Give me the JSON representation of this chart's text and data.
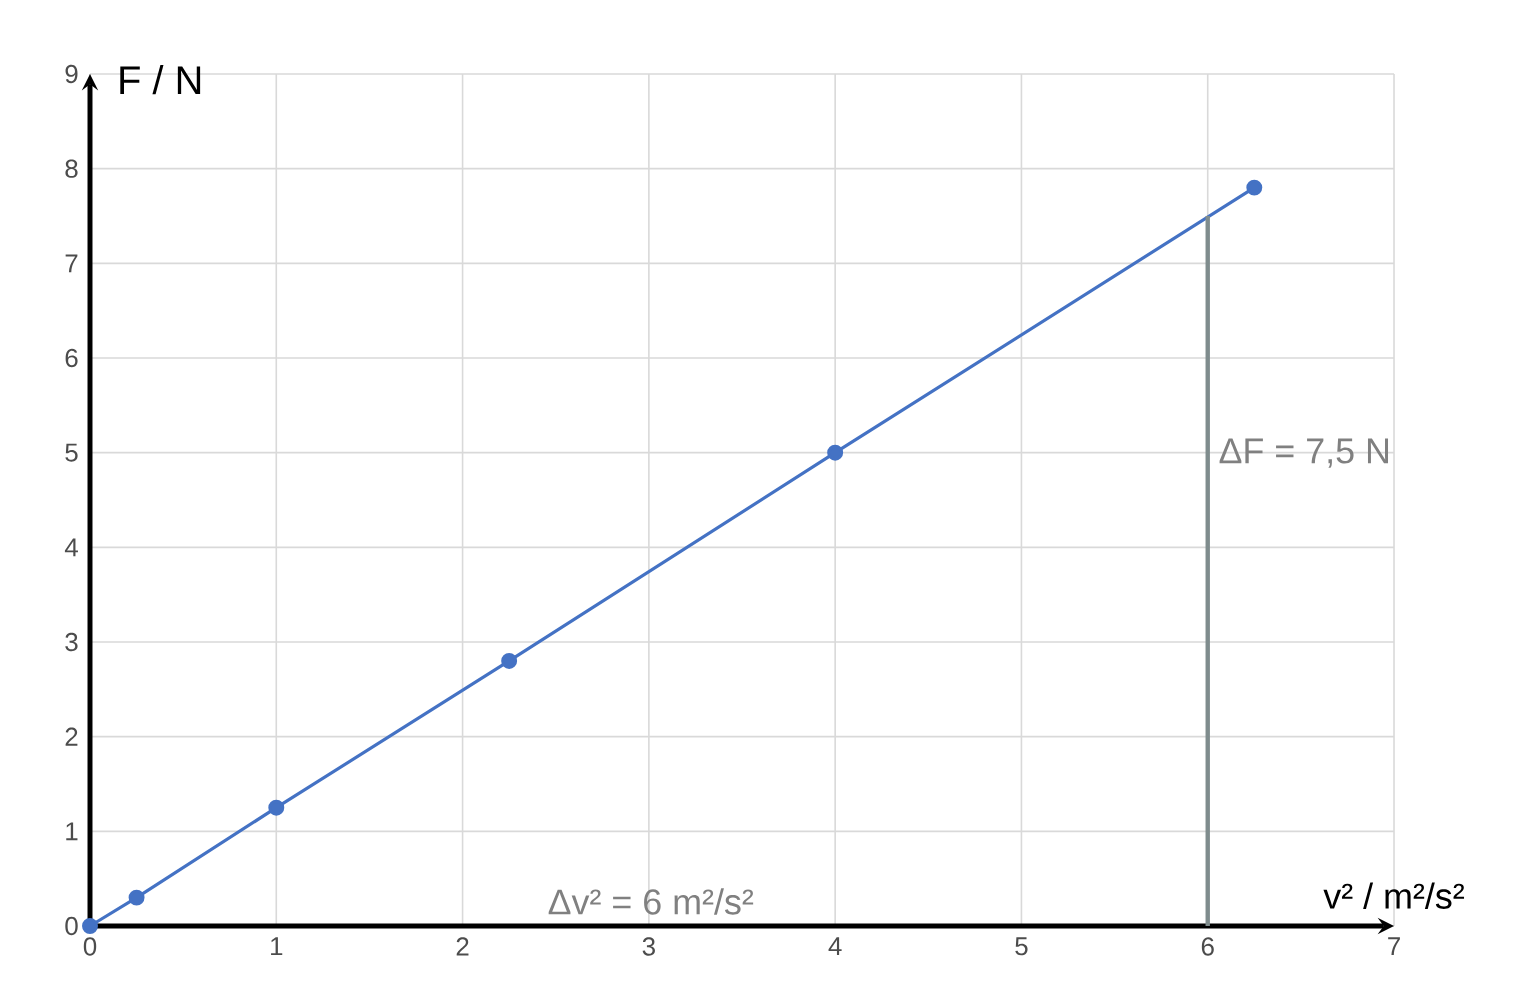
{
  "chart_data": {
    "type": "line",
    "xlabel": "v² / m²/s²",
    "ylabel": "F / N",
    "xlim": [
      0,
      7
    ],
    "ylim": [
      0,
      9
    ],
    "xticks": [
      0,
      1,
      2,
      3,
      4,
      5,
      6,
      7
    ],
    "yticks": [
      0,
      1,
      2,
      3,
      4,
      5,
      6,
      7,
      8,
      9
    ],
    "grid": true,
    "series": [
      {
        "color": "#4472c4",
        "marker": "circle",
        "x": [
          0,
          0.25,
          1,
          2.25,
          4,
          6.25
        ],
        "values": [
          0,
          0.3,
          1.25,
          2.8,
          5,
          7.8
        ]
      },
      {
        "color": "#7f8c8d",
        "marker": "none",
        "x": [
          6,
          6
        ],
        "values": [
          0,
          7.5
        ]
      }
    ],
    "annotations": [
      "ΔF = 7,5 N",
      "Δv² = 6 m²/s²"
    ]
  }
}
